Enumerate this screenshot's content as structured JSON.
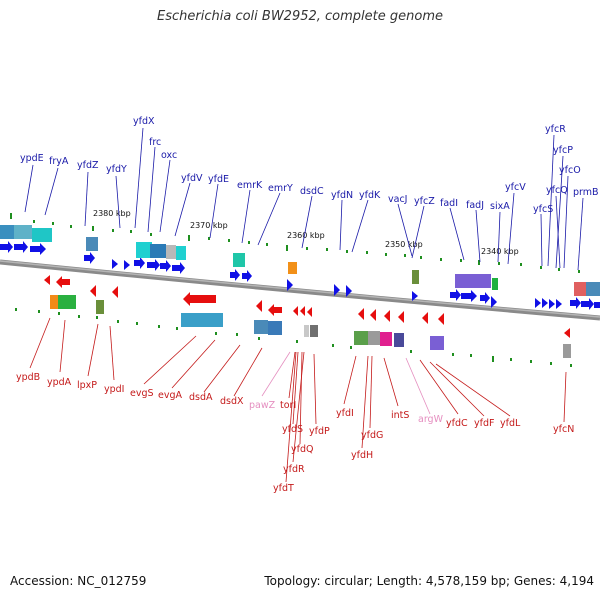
{
  "title": "Escherichia coli BW2952, complete genome",
  "footer": {
    "accession": "Accession: NC_012759",
    "summary": "Topology: circular; Length: 4,578,159 bp; Genes: 4,194"
  },
  "kbp_labels": [
    "2380 kbp",
    "2370 kbp",
    "2360 kbp",
    "2350 kbp",
    "2340 kbp"
  ],
  "genes_top": [
    "ypdE",
    "fryA",
    "yfdZ",
    "yfdY",
    "yfdX",
    "frc",
    "oxc",
    "yfdV",
    "yfdE",
    "emrK",
    "emrY",
    "dsdC",
    "yfdN",
    "yfdK",
    "vacJ",
    "yfcZ",
    "fadI",
    "fadJ",
    "sixA",
    "yfcV",
    "yfcS",
    "yfcR",
    "yfcP",
    "yfcO",
    "yfcQ",
    "prmB"
  ],
  "genes_bottom": [
    "ypdB",
    "ypdA",
    "lpxP",
    "ypdI",
    "evgS",
    "evgA",
    "dsdA",
    "dsdX",
    "pawZ",
    "torI",
    "yfdS",
    "yfdQ",
    "yfdR",
    "yfdT",
    "yfdP",
    "yfdI",
    "yfdG",
    "yfdH",
    "intS",
    "argW",
    "yfdC",
    "yfdF",
    "yfdL",
    "yfcN"
  ],
  "colors": {
    "forward": "#1010e6",
    "reverse": "#e60e0e",
    "pink": "#e58fc0",
    "backbone": "#8a8a8a",
    "tick": "#1f8f1f"
  }
}
